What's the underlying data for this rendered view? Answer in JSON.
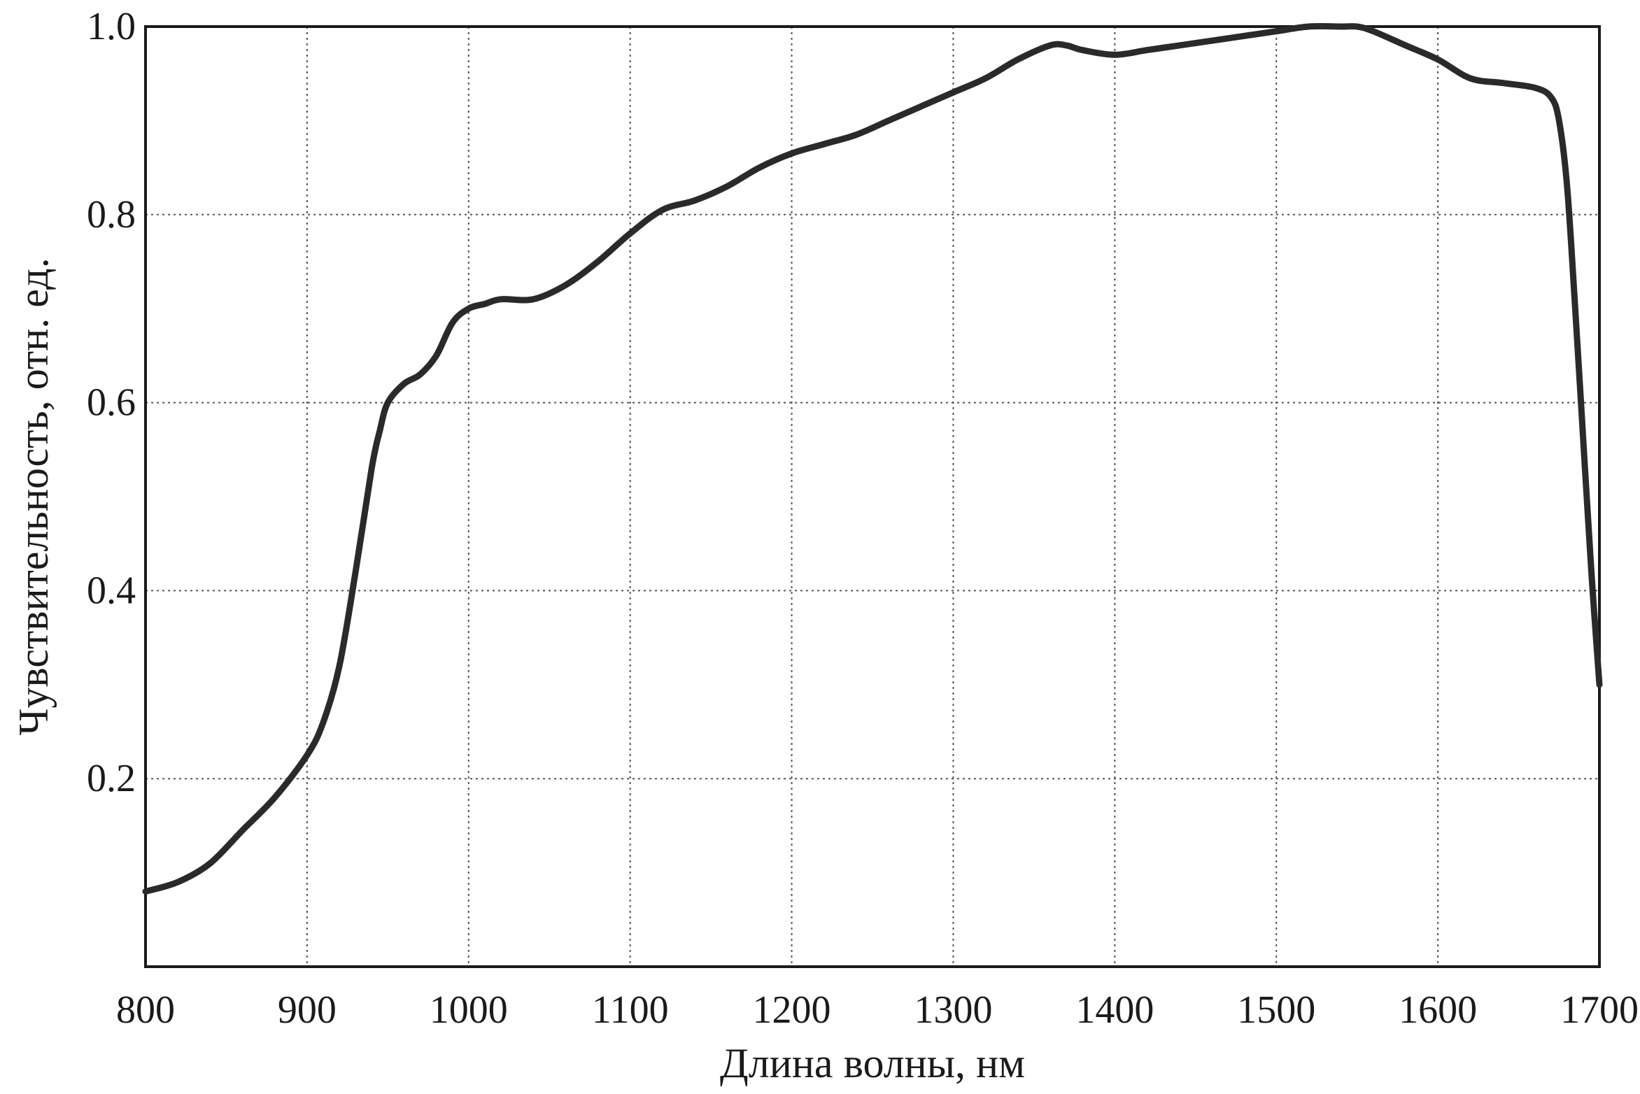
{
  "chart_data": {
    "type": "line",
    "title": "",
    "xlabel": "Длина волны, нм",
    "ylabel": "Чувствительность, отн. ед.",
    "xlim": [
      800,
      1700
    ],
    "ylim": [
      0,
      1.0
    ],
    "x_ticks": [
      "800",
      "900",
      "1000",
      "1100",
      "1200",
      "1300",
      "1400",
      "1500",
      "1600",
      "1700"
    ],
    "y_ticks": [
      "0.2",
      "0.4",
      "0.6",
      "0.8",
      "1.0"
    ],
    "x_tick_values": [
      800,
      900,
      1000,
      1100,
      1200,
      1300,
      1400,
      1500,
      1600,
      1700
    ],
    "y_tick_values": [
      0.2,
      0.4,
      0.6,
      0.8,
      1.0
    ],
    "grid": true,
    "legend": "none",
    "line_color": "#2a2a2a",
    "series": [
      {
        "name": "",
        "x": [
          800,
          820,
          840,
          860,
          880,
          900,
          910,
          920,
          930,
          940,
          945,
          950,
          960,
          970,
          980,
          990,
          1000,
          1010,
          1020,
          1040,
          1060,
          1080,
          1100,
          1120,
          1140,
          1160,
          1180,
          1200,
          1220,
          1240,
          1260,
          1280,
          1300,
          1320,
          1340,
          1360,
          1370,
          1380,
          1400,
          1420,
          1440,
          1460,
          1480,
          1500,
          1520,
          1540,
          1550,
          1560,
          1580,
          1600,
          1620,
          1640,
          1660,
          1670,
          1675,
          1680,
          1685,
          1690,
          1695,
          1700
        ],
        "y": [
          0.08,
          0.09,
          0.11,
          0.145,
          0.18,
          0.225,
          0.26,
          0.32,
          0.42,
          0.53,
          0.57,
          0.6,
          0.62,
          0.63,
          0.65,
          0.685,
          0.7,
          0.705,
          0.71,
          0.71,
          0.725,
          0.75,
          0.78,
          0.805,
          0.815,
          0.83,
          0.85,
          0.865,
          0.875,
          0.885,
          0.9,
          0.915,
          0.93,
          0.945,
          0.965,
          0.98,
          0.98,
          0.975,
          0.97,
          0.975,
          0.98,
          0.985,
          0.99,
          0.995,
          1.0,
          1.0,
          1.0,
          0.995,
          0.98,
          0.965,
          0.945,
          0.94,
          0.935,
          0.925,
          0.9,
          0.83,
          0.7,
          0.56,
          0.42,
          0.3
        ]
      }
    ]
  }
}
